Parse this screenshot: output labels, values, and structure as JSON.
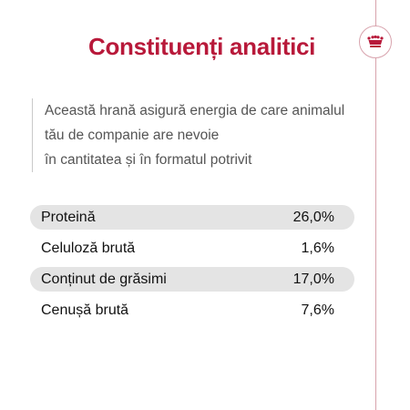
{
  "header": {
    "title": "Constituenți analitici"
  },
  "intro": {
    "lines": [
      "Această hrană asigură energia de care animalul",
      "tău de companie are nevoie",
      "în cantitatea și în formatul potrivit"
    ]
  },
  "nutrients": [
    {
      "name": "Proteină",
      "value": "26,0%"
    },
    {
      "name": "Celuloză brută",
      "value": "1,6%"
    },
    {
      "name": "Conținut de grăsimi",
      "value": "17,0%"
    },
    {
      "name": "Cenușă brută",
      "value": "7,6%"
    }
  ],
  "brand": {
    "icon": "crown-icon",
    "accent_color": "#b8193a",
    "line_color": "#d8a3ad"
  }
}
